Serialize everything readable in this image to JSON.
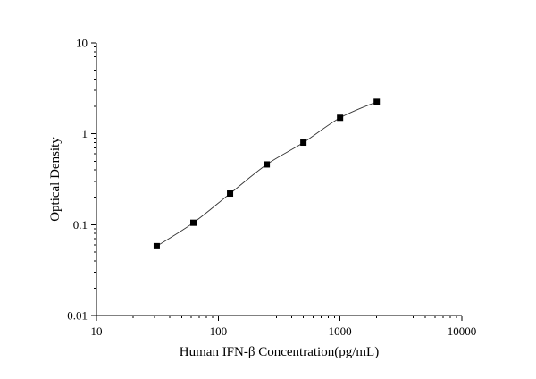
{
  "chart_data": {
    "type": "scatter",
    "title": "",
    "xlabel": "Human IFN-β Concentration(pg/mL)",
    "ylabel": "Optical Density",
    "xscale": "log",
    "yscale": "log",
    "xlim": [
      10,
      10000
    ],
    "ylim": [
      0.01,
      10
    ],
    "x_tick_labels": [
      "10",
      "100",
      "1000",
      "10000"
    ],
    "y_tick_labels": [
      "0.01",
      "0.1",
      "1",
      "10"
    ],
    "grid": false,
    "legend": "none",
    "series": [
      {
        "x": [
          31.25,
          62.5,
          125,
          250,
          500,
          1000,
          2000
        ],
        "y": [
          0.058,
          0.105,
          0.22,
          0.46,
          0.8,
          1.5,
          2.25
        ]
      }
    ],
    "colors": {
      "marker": "#000000",
      "curve": "#333333",
      "axis": "#000000"
    }
  }
}
